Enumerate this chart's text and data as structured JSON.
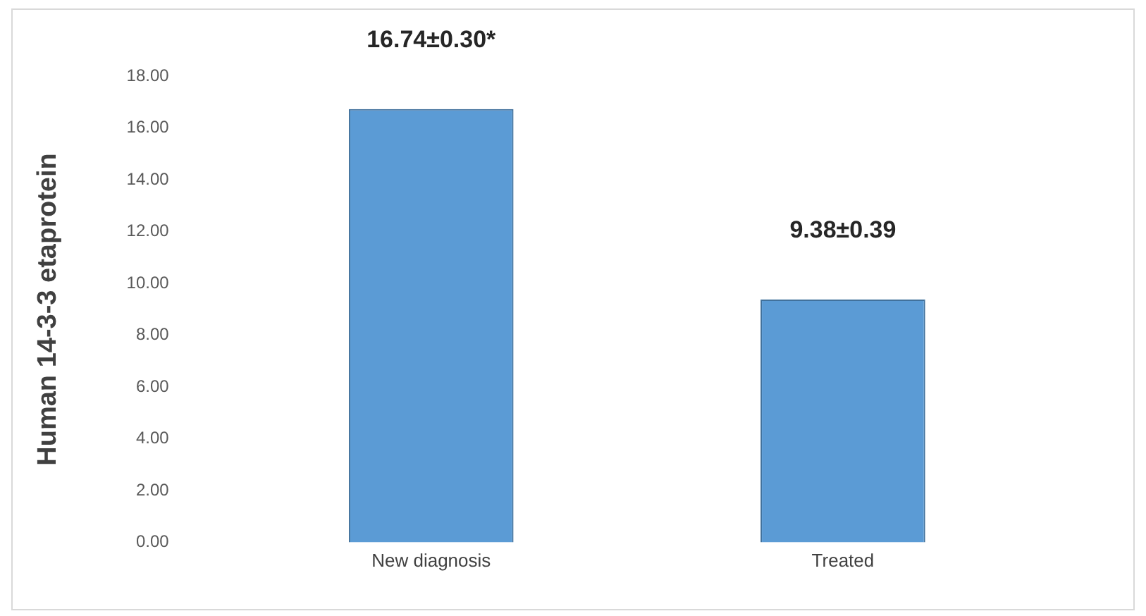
{
  "chart_data": {
    "type": "bar",
    "ylabel": "Human 14-3-3 etaprotein",
    "categories": [
      "New diagnosis",
      "Treated"
    ],
    "values": [
      16.74,
      9.38
    ],
    "color": "#5b9bd5",
    "value_labels": [
      "16.74±0.30*",
      "9.38±0.39"
    ],
    "ylim": [
      0,
      18
    ],
    "yticks": [
      {
        "value": 0,
        "label": "0.00"
      },
      {
        "value": 2,
        "label": "2.00"
      },
      {
        "value": 4,
        "label": "4.00"
      },
      {
        "value": 6,
        "label": "6.00"
      },
      {
        "value": 8,
        "label": "8.00"
      },
      {
        "value": 10,
        "label": "10.00"
      },
      {
        "value": 12,
        "label": "12.00"
      },
      {
        "value": 14,
        "label": "14.00"
      },
      {
        "value": 16,
        "label": "16.00"
      },
      {
        "value": 18,
        "label": "18.00"
      }
    ],
    "grid": false,
    "legend": false
  }
}
